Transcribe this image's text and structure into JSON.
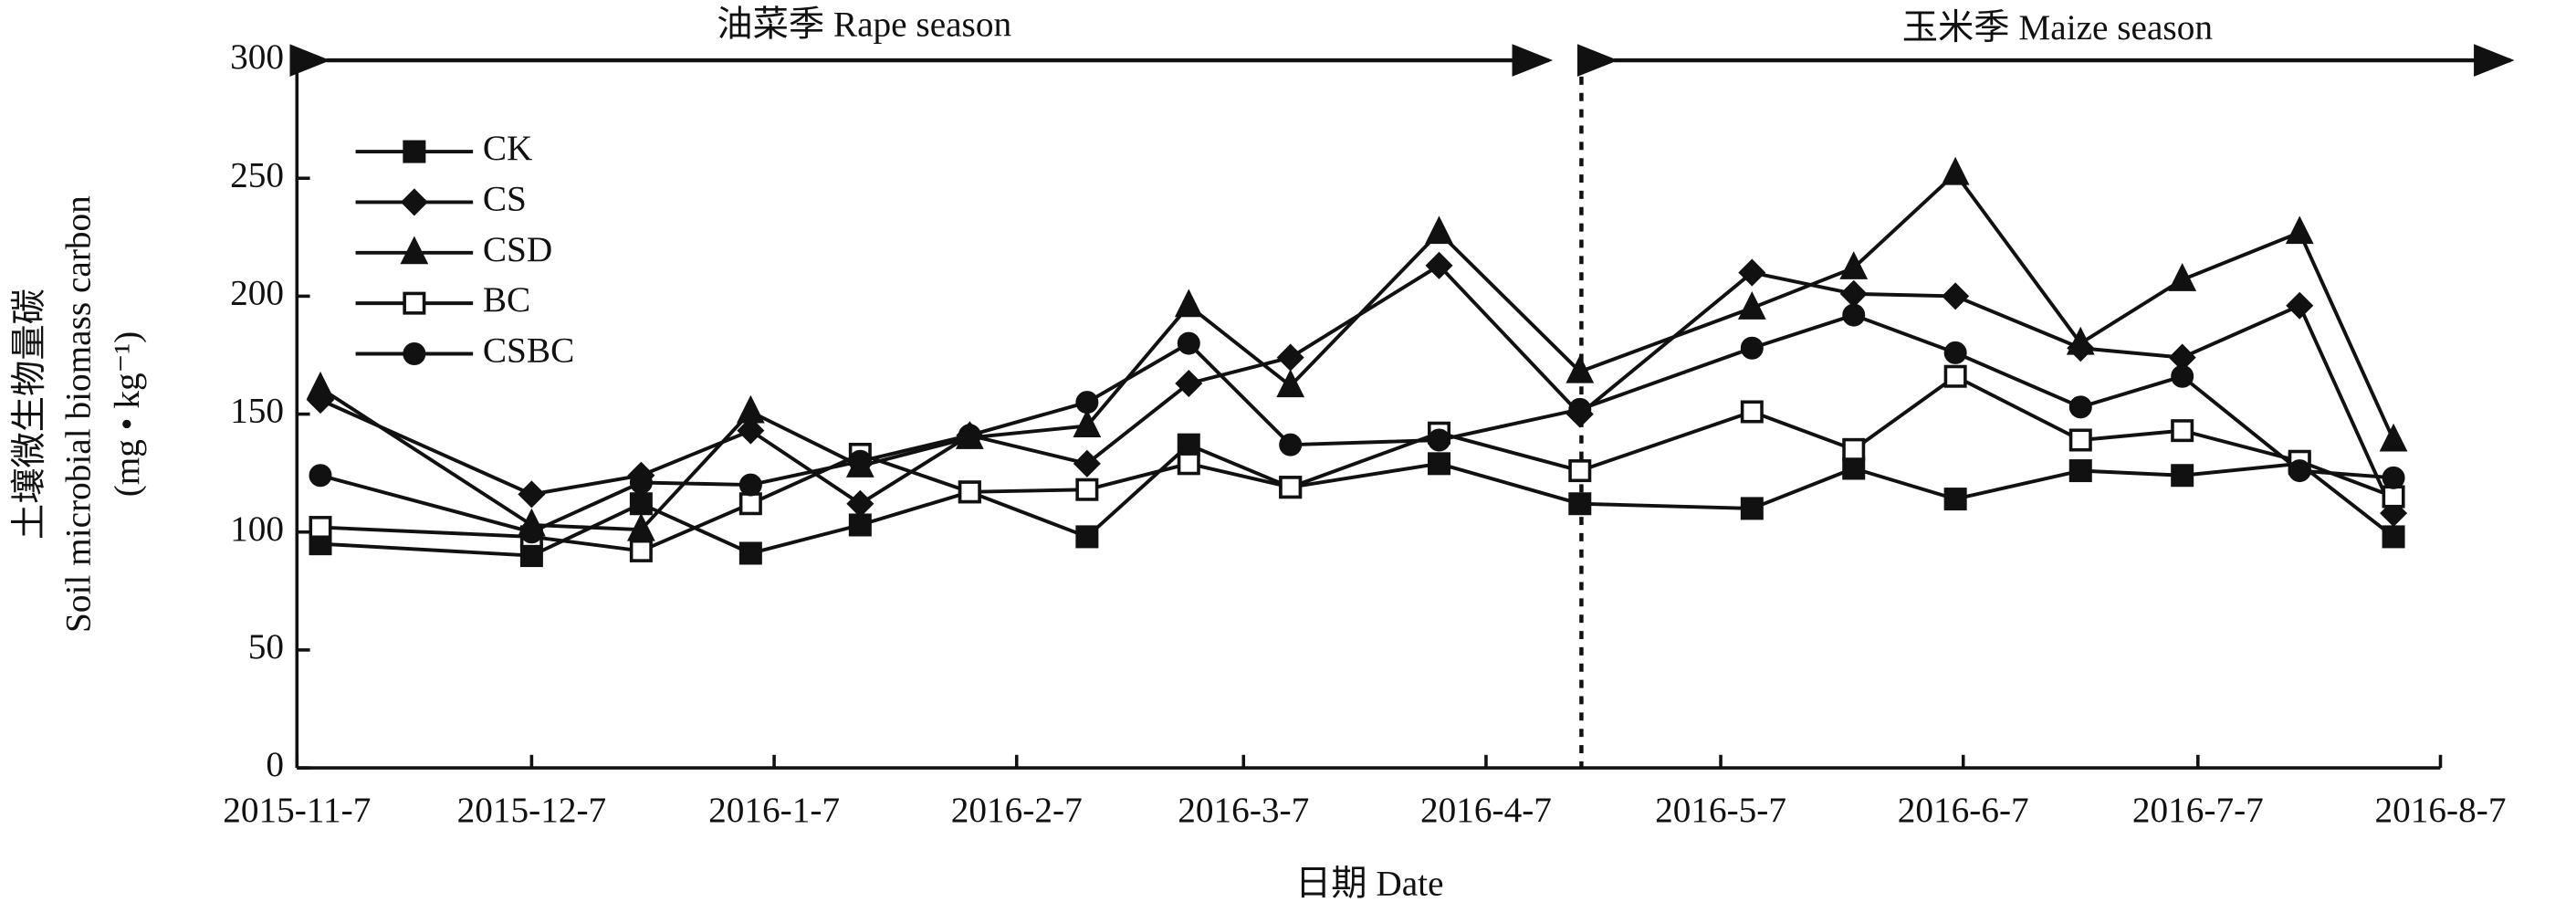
{
  "chart_data": {
    "type": "line",
    "y_label_lines": [
      "土壤微生物量碳",
      "Soil microbial biomass carbon",
      "(mg • kg⁻¹)"
    ],
    "x_label": "日期 Date",
    "annotations": [
      "油菜季 Rape season",
      "玉米季 Maize season"
    ],
    "x": [
      "2015-11-10",
      "2015-12-7",
      "2015-12-21",
      "2016-1-4",
      "2016-1-18",
      "2016-2-1",
      "2016-2-16",
      "2016-2-29",
      "2016-3-13",
      "2016-4-1",
      "2016-4-19",
      "2016-5-11",
      "2016-5-24",
      "2016-6-6",
      "2016-6-22",
      "2016-7-5",
      "2016-7-20",
      "2016-8-1"
    ],
    "xlim": [
      "2015-11-7",
      "2016-8-7"
    ],
    "xticks": [
      "2015-11-7",
      "2015-12-7",
      "2016-1-7",
      "2016-2-7",
      "2016-3-7",
      "2016-4-7",
      "2016-5-7",
      "2016-6-7",
      "2016-7-7",
      "2016-8-7"
    ],
    "ylim": [
      0,
      300
    ],
    "yticks": [
      0,
      50,
      100,
      150,
      200,
      250,
      300
    ],
    "series": [
      {
        "name": "CK",
        "color": "#111111",
        "marker": "square",
        "values": [
          95,
          90,
          112,
          91,
          103,
          117,
          98,
          137,
          119,
          129,
          112,
          110,
          127,
          114,
          126,
          124,
          129,
          98
        ]
      },
      {
        "name": "CS",
        "color": "#111111",
        "marker": "diamond",
        "values": [
          156,
          116,
          124,
          143,
          112,
          141,
          129,
          163,
          174,
          213,
          150,
          210,
          201,
          200,
          178,
          174,
          196,
          108
        ]
      },
      {
        "name": "CSD",
        "color": "#111111",
        "marker": "triangle",
        "values": [
          161,
          103,
          101,
          151,
          128,
          140,
          145,
          196,
          162,
          227,
          168,
          195,
          212,
          252,
          180,
          207,
          227,
          139
        ]
      },
      {
        "name": "BC",
        "color": "#111111",
        "marker": "open-square",
        "values": [
          102,
          98,
          92,
          112,
          133,
          117,
          118,
          129,
          119,
          142,
          126,
          151,
          135,
          166,
          139,
          143,
          130,
          115
        ]
      },
      {
        "name": "CSBC",
        "color": "#111111",
        "marker": "circle",
        "values": [
          124,
          100,
          121,
          120,
          130,
          141,
          155,
          180,
          137,
          139,
          152,
          178,
          192,
          176,
          153,
          166,
          126,
          123
        ]
      }
    ]
  }
}
